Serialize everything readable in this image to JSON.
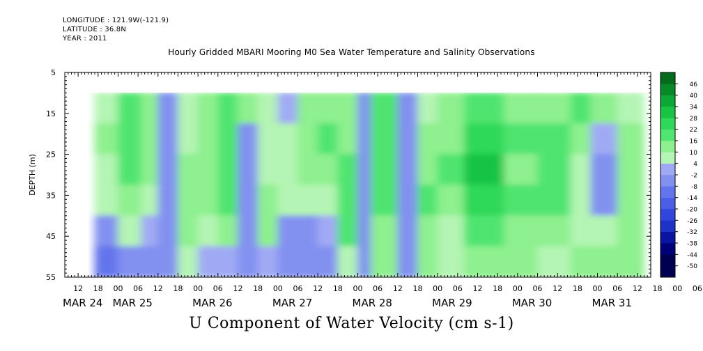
{
  "header": {
    "longitude": "LONGITUDE : 121.9W(-121.9)",
    "latitude": "LATITUDE : 36.8N",
    "year": "YEAR : 2011"
  },
  "chart_data": {
    "type": "heatmap",
    "title": "Hourly Gridded MBARI Mooring M0 Sea Water Temperature and Salinity Observations",
    "xlabel": "U Component of Water Velocity (cm s-1)",
    "ylabel": "DEPTH (m)",
    "y_range": [
      5,
      55
    ],
    "y_inverted": true,
    "y_ticks": [
      5,
      15,
      25,
      35,
      45,
      55
    ],
    "data_depth_range": [
      10,
      55
    ],
    "x_range_hours": [
      "2011-03-24 08:00",
      "2011-03-31 16:00"
    ],
    "data_start": "2011-03-24 17:00",
    "hour_tick_labels": [
      "12",
      "18",
      "00",
      "06",
      "12",
      "18",
      "00",
      "06",
      "12",
      "18",
      "00",
      "06",
      "12",
      "18",
      "00",
      "06",
      "12",
      "18",
      "00",
      "06",
      "12",
      "18",
      "00",
      "06",
      "12",
      "18",
      "00",
      "06",
      "12",
      "18",
      "00",
      "06"
    ],
    "day_labels": [
      "MAR 24",
      "MAR 25",
      "MAR 26",
      "MAR 27",
      "MAR 28",
      "MAR 29",
      "MAR 30",
      "MAR 31"
    ],
    "colorbar": {
      "levels": [
        -50,
        -44,
        -38,
        -32,
        -26,
        -20,
        -14,
        -8,
        -2,
        4,
        10,
        16,
        22,
        28,
        34,
        40,
        46
      ],
      "labels": [
        "46",
        "40",
        "34",
        "28",
        "22",
        "16",
        "10",
        "4",
        "-2",
        "-8",
        "-14",
        "-20",
        "-26",
        "-32",
        "-38",
        "-44",
        "-50"
      ]
    },
    "colors": {
      "negative_band": "#9aa6f2",
      "weak_positive": "#a8f0a8",
      "moderate_positive": "#3ee068",
      "strong_positive": "#14c040"
    },
    "columns": [
      {
        "start": "2011-03-24 17:00",
        "values_top_to_bottom": [
          8,
          10,
          8,
          4,
          -4,
          -10
        ]
      },
      {
        "start": "2011-03-25 00:00",
        "values_top_to_bottom": [
          18,
          20,
          18,
          14,
          6,
          -6
        ]
      },
      {
        "start": "2011-03-25 07:00",
        "values_top_to_bottom": [
          14,
          14,
          12,
          8,
          0,
          -6
        ]
      },
      {
        "start": "2011-03-25 12:00",
        "values_top_to_bottom": [
          -6,
          -8,
          -8,
          -8,
          -6,
          -4
        ]
      },
      {
        "start": "2011-03-25 18:00",
        "values_top_to_bottom": [
          8,
          6,
          10,
          10,
          12,
          4
        ]
      },
      {
        "start": "2011-03-26 00:00",
        "values_top_to_bottom": [
          10,
          14,
          12,
          10,
          8,
          2
        ]
      },
      {
        "start": "2011-03-26 06:00",
        "values_top_to_bottom": [
          16,
          18,
          18,
          16,
          10,
          0
        ]
      },
      {
        "start": "2011-03-26 12:00",
        "values_top_to_bottom": [
          12,
          -6,
          -6,
          -6,
          -6,
          -8
        ]
      },
      {
        "start": "2011-03-26 18:00",
        "values_top_to_bottom": [
          6,
          4,
          8,
          10,
          12,
          2
        ]
      },
      {
        "start": "2011-03-27 00:00",
        "values_top_to_bottom": [
          -2,
          4,
          6,
          8,
          -4,
          -6
        ]
      },
      {
        "start": "2011-03-27 06:00",
        "values_top_to_bottom": [
          14,
          14,
          12,
          8,
          -4,
          -8
        ]
      },
      {
        "start": "2011-03-27 12:00",
        "values_top_to_bottom": [
          14,
          16,
          14,
          8,
          0,
          -4
        ]
      },
      {
        "start": "2011-03-27 18:00",
        "values_top_to_bottom": [
          10,
          12,
          16,
          18,
          16,
          8
        ]
      },
      {
        "start": "2011-03-28 00:00",
        "values_top_to_bottom": [
          -4,
          -6,
          -6,
          -4,
          -4,
          -6
        ]
      },
      {
        "start": "2011-03-28 04:00",
        "values_top_to_bottom": [
          18,
          20,
          18,
          16,
          14,
          10
        ]
      },
      {
        "start": "2011-03-28 12:00",
        "values_top_to_bottom": [
          -8,
          -8,
          -8,
          -6,
          -6,
          -4
        ]
      },
      {
        "start": "2011-03-28 18:00",
        "values_top_to_bottom": [
          8,
          12,
          14,
          16,
          14,
          12
        ]
      },
      {
        "start": "2011-03-29 00:00",
        "values_top_to_bottom": [
          12,
          14,
          16,
          12,
          8,
          4
        ]
      },
      {
        "start": "2011-03-29 08:00",
        "values_top_to_bottom": [
          18,
          22,
          28,
          26,
          20,
          14
        ]
      },
      {
        "start": "2011-03-29 20:00",
        "values_top_to_bottom": [
          14,
          16,
          14,
          16,
          14,
          10
        ]
      },
      {
        "start": "2011-03-30 06:00",
        "values_top_to_bottom": [
          10,
          16,
          18,
          16,
          10,
          4
        ]
      },
      {
        "start": "2011-03-30 16:00",
        "values_top_to_bottom": [
          16,
          14,
          8,
          6,
          8,
          12
        ]
      },
      {
        "start": "2011-03-30 22:00",
        "values_top_to_bottom": [
          10,
          2,
          -6,
          -4,
          6,
          10
        ]
      },
      {
        "start": "2011-03-31 06:00",
        "values_top_to_bottom": [
          8,
          10,
          12,
          12,
          12,
          10
        ]
      }
    ],
    "data_end": "2011-03-31 14:00"
  }
}
